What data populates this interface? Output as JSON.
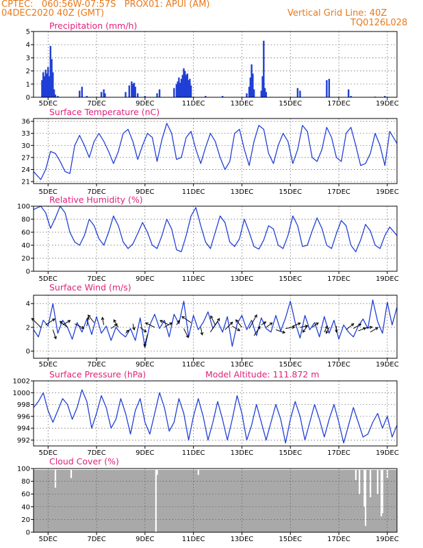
{
  "header": {
    "line1_left": "CPTEC:   060:56W-07:57S   PROX01: APUI (AM)",
    "line2_left": "04DEC2020 40Z (GMT)",
    "line1_right": "Vertical Grid Line: 40Z",
    "line2_right": "TQ0126L028"
  },
  "colors": {
    "series": "#1f3fd6",
    "title": "#e0207a",
    "header": "#e8791a",
    "cloud": "#a9a9a9"
  },
  "chart_data": [
    {
      "type": "bar",
      "title": "Precipitation (mm/h)",
      "ylim": [
        0,
        5
      ],
      "yticks": [
        "0",
        "1",
        "2",
        "3",
        "4",
        "5"
      ],
      "xlabels": [
        "5DEC",
        "7DEC",
        "9DEC",
        "11DEC",
        "13DEC",
        "15DEC",
        "17DEC",
        "19DEC"
      ],
      "x_days": [
        4.4,
        19.4
      ],
      "grid": true,
      "bars": [
        [
          4.75,
          1.3
        ],
        [
          4.8,
          1.9
        ],
        [
          4.85,
          1.6
        ],
        [
          4.9,
          2.1
        ],
        [
          4.95,
          1.8
        ],
        [
          5.0,
          2.3
        ],
        [
          5.05,
          1.6
        ],
        [
          5.1,
          3.9
        ],
        [
          5.15,
          2.9
        ],
        [
          5.2,
          1.9
        ],
        [
          5.25,
          0.6
        ],
        [
          5.3,
          0.2
        ],
        [
          5.4,
          0.1
        ],
        [
          6.3,
          0.5
        ],
        [
          6.4,
          0.8
        ],
        [
          6.6,
          0.1
        ],
        [
          7.2,
          0.4
        ],
        [
          7.3,
          0.6
        ],
        [
          7.35,
          0.3
        ],
        [
          8.2,
          0.4
        ],
        [
          8.35,
          0.9
        ],
        [
          8.45,
          1.2
        ],
        [
          8.5,
          1.0
        ],
        [
          8.55,
          1.1
        ],
        [
          8.6,
          0.8
        ],
        [
          8.7,
          0.3
        ],
        [
          9.0,
          0.1
        ],
        [
          9.5,
          0.3
        ],
        [
          9.6,
          0.6
        ],
        [
          10.2,
          0.7
        ],
        [
          10.3,
          1.0
        ],
        [
          10.35,
          1.2
        ],
        [
          10.4,
          1.5
        ],
        [
          10.45,
          1.1
        ],
        [
          10.5,
          1.4
        ],
        [
          10.55,
          1.7
        ],
        [
          10.6,
          2.2
        ],
        [
          10.65,
          2.0
        ],
        [
          10.7,
          1.7
        ],
        [
          10.75,
          1.8
        ],
        [
          10.8,
          1.3
        ],
        [
          10.85,
          1.4
        ],
        [
          10.9,
          0.9
        ],
        [
          11.5,
          0.1
        ],
        [
          12.2,
          0.1
        ],
        [
          13.2,
          0.3
        ],
        [
          13.3,
          0.8
        ],
        [
          13.35,
          1.5
        ],
        [
          13.4,
          2.5
        ],
        [
          13.45,
          1.8
        ],
        [
          13.5,
          0.6
        ],
        [
          13.8,
          0.5
        ],
        [
          13.85,
          1.6
        ],
        [
          13.9,
          4.3
        ],
        [
          13.95,
          0.7
        ],
        [
          14.0,
          0.4
        ],
        [
          15.3,
          0.7
        ],
        [
          15.4,
          0.5
        ],
        [
          16.5,
          1.3
        ],
        [
          16.6,
          1.4
        ],
        [
          17.4,
          0.6
        ],
        [
          17.5,
          0.1
        ],
        [
          18.5,
          0.05
        ],
        [
          18.9,
          0.1
        ]
      ]
    },
    {
      "type": "line",
      "title": "Surface Temperature (nC)",
      "ylim": [
        20.5,
        36.7
      ],
      "yticks": [
        "21",
        "24",
        "27",
        "30",
        "33",
        "36"
      ],
      "xlabels": [
        "5DEC",
        "7DEC",
        "9DEC",
        "11DEC",
        "13DEC",
        "15DEC",
        "17DEC",
        "19DEC"
      ],
      "grid": true,
      "x": [
        4.4,
        4.7,
        4.9,
        5.1,
        5.3,
        5.5,
        5.7,
        5.9,
        6.1,
        6.3,
        6.5,
        6.7,
        6.9,
        7.1,
        7.3,
        7.5,
        7.7,
        7.9,
        8.1,
        8.3,
        8.5,
        8.7,
        8.9,
        9.1,
        9.3,
        9.5,
        9.7,
        9.9,
        10.1,
        10.3,
        10.5,
        10.7,
        10.9,
        11.1,
        11.3,
        11.5,
        11.7,
        11.9,
        12.1,
        12.3,
        12.5,
        12.7,
        12.9,
        13.1,
        13.3,
        13.5,
        13.7,
        13.9,
        14.1,
        14.3,
        14.5,
        14.7,
        14.9,
        15.1,
        15.3,
        15.5,
        15.7,
        15.9,
        16.1,
        16.3,
        16.5,
        16.7,
        16.9,
        17.1,
        17.3,
        17.5,
        17.7,
        17.9,
        18.1,
        18.3,
        18.5,
        18.7,
        18.9,
        19.1,
        19.4
      ],
      "y": [
        23.5,
        21.5,
        24,
        28.5,
        28,
        26,
        23.5,
        23,
        30,
        32.5,
        30,
        27,
        31,
        33,
        31,
        28.5,
        25.5,
        28.5,
        33,
        34,
        31,
        26.5,
        30,
        33,
        32,
        26,
        31.5,
        35.5,
        33,
        26.5,
        27,
        32,
        33.5,
        29,
        25.5,
        29.5,
        33,
        31,
        27,
        24,
        26,
        33,
        34,
        29,
        25,
        31,
        35,
        34,
        28,
        25.5,
        30,
        33,
        31,
        25.5,
        29,
        35,
        33.5,
        27,
        26,
        29,
        34.5,
        32,
        27,
        26,
        33,
        34.5,
        30,
        25,
        25.5,
        28,
        33,
        30,
        25,
        33.5,
        30.5
      ]
    },
    {
      "type": "line",
      "title": "Relative Humidity (%)",
      "ylim": [
        0,
        100
      ],
      "yticks": [
        "0",
        "20",
        "40",
        "60",
        "80",
        "100"
      ],
      "xlabels": [
        "5DEC",
        "7DEC",
        "9DEC",
        "11DEC",
        "13DEC",
        "15DEC",
        "17DEC",
        "19DEC"
      ],
      "grid": true,
      "x": [
        4.4,
        4.7,
        4.9,
        5.1,
        5.3,
        5.5,
        5.7,
        5.9,
        6.1,
        6.3,
        6.5,
        6.7,
        6.9,
        7.1,
        7.3,
        7.5,
        7.7,
        7.9,
        8.1,
        8.3,
        8.5,
        8.7,
        8.9,
        9.1,
        9.3,
        9.5,
        9.7,
        9.9,
        10.1,
        10.3,
        10.5,
        10.7,
        10.9,
        11.1,
        11.3,
        11.5,
        11.7,
        11.9,
        12.1,
        12.3,
        12.5,
        12.7,
        12.9,
        13.1,
        13.3,
        13.5,
        13.7,
        13.9,
        14.1,
        14.3,
        14.5,
        14.7,
        14.9,
        15.1,
        15.3,
        15.5,
        15.7,
        15.9,
        16.1,
        16.3,
        16.5,
        16.7,
        16.9,
        17.1,
        17.3,
        17.5,
        17.7,
        17.9,
        18.1,
        18.3,
        18.5,
        18.7,
        18.9,
        19.1,
        19.4
      ],
      "y": [
        95,
        100,
        90,
        66,
        82,
        100,
        90,
        60,
        45,
        40,
        55,
        80,
        70,
        50,
        40,
        60,
        85,
        70,
        45,
        35,
        42,
        58,
        75,
        60,
        40,
        35,
        55,
        80,
        65,
        33,
        30,
        55,
        85,
        98,
        70,
        45,
        35,
        60,
        85,
        75,
        45,
        38,
        50,
        80,
        60,
        38,
        34,
        48,
        70,
        65,
        40,
        35,
        55,
        85,
        70,
        38,
        40,
        62,
        82,
        66,
        40,
        35,
        58,
        78,
        70,
        40,
        30,
        48,
        72,
        62,
        40,
        35,
        55,
        68,
        55
      ]
    },
    {
      "type": "line",
      "title": "Surface Wind (m/s)",
      "ylim": [
        -0.6,
        4.7
      ],
      "yticks": [
        "0",
        "2",
        "4"
      ],
      "xlabels": [
        "5DEC",
        "7DEC",
        "9DEC",
        "11DEC",
        "13DEC",
        "15DEC",
        "17DEC",
        "19DEC"
      ],
      "grid": true,
      "x": [
        4.4,
        4.6,
        4.8,
        5.0,
        5.2,
        5.4,
        5.6,
        5.8,
        6.0,
        6.2,
        6.4,
        6.6,
        6.8,
        7.0,
        7.2,
        7.4,
        7.6,
        7.8,
        8.0,
        8.2,
        8.4,
        8.6,
        8.8,
        9.0,
        9.2,
        9.4,
        9.6,
        9.8,
        10.0,
        10.2,
        10.4,
        10.6,
        10.8,
        11.0,
        11.2,
        11.4,
        11.6,
        11.8,
        12.0,
        12.2,
        12.4,
        12.6,
        12.8,
        13.0,
        13.2,
        13.4,
        13.6,
        13.8,
        14.0,
        14.2,
        14.4,
        14.6,
        14.8,
        15.0,
        15.2,
        15.4,
        15.6,
        15.8,
        16.0,
        16.2,
        16.4,
        16.6,
        16.8,
        17.0,
        17.2,
        17.4,
        17.6,
        17.8,
        18.0,
        18.2,
        18.4,
        18.6,
        18.8,
        19.0,
        19.2,
        19.4
      ],
      "y": [
        1.8,
        1.2,
        2.6,
        2.1,
        4.0,
        1.5,
        2.6,
        2.0,
        1.0,
        2.4,
        1.6,
        2.7,
        1.4,
        2.9,
        1.5,
        2.1,
        0.9,
        2.0,
        1.5,
        1.2,
        1.9,
        0.9,
        2.8,
        0.3,
        2.2,
        3.1,
        1.9,
        2.6,
        1.2,
        3.1,
        2.3,
        4.2,
        1.2,
        3.0,
        1.8,
        2.4,
        3.3,
        1.9,
        2.5,
        1.6,
        2.9,
        0.4,
        2.3,
        3.0,
        1.8,
        2.6,
        1.3,
        2.8,
        1.9,
        1.6,
        3.0,
        1.7,
        2.8,
        4.2,
        2.4,
        1.1,
        3.0,
        1.8,
        2.4,
        1.2,
        2.9,
        1.5,
        2.6,
        1.0,
        2.2,
        1.6,
        1.2,
        2.1,
        2.7,
        1.9,
        4.3,
        2.5,
        1.5,
        4.1,
        2.2,
        3.7
      ],
      "arrows": [
        [
          4.7,
          2.0,
          -0.6,
          0.6
        ],
        [
          4.9,
          2.2,
          0.6,
          0.4
        ],
        [
          5.2,
          1.8,
          0.2,
          -0.6
        ],
        [
          5.6,
          2.2,
          0.5,
          0.3
        ],
        [
          5.8,
          2.0,
          -0.5,
          0.4
        ],
        [
          6.1,
          2.3,
          0.6,
          -0.3
        ],
        [
          6.6,
          2.1,
          0.1,
          0.6
        ],
        [
          6.9,
          2.4,
          -0.4,
          0.5
        ],
        [
          7.3,
          2.2,
          -0.1,
          0.5
        ],
        [
          7.6,
          1.9,
          0.4,
          0.3
        ],
        [
          7.9,
          2.0,
          -0.3,
          0.5
        ],
        [
          8.2,
          1.5,
          0.2,
          0.2
        ],
        [
          8.5,
          2.3,
          0.1,
          -0.4
        ],
        [
          8.8,
          2.0,
          0.4,
          -0.3
        ],
        [
          9.1,
          1.4,
          -0.2,
          -0.8
        ],
        [
          9.4,
          2.0,
          -0.6,
          0.3
        ],
        [
          9.8,
          2.0,
          0.5,
          0.3
        ],
        [
          10.0,
          2.2,
          -0.6,
          0.3
        ],
        [
          10.3,
          2.2,
          0.2,
          0.3
        ],
        [
          10.6,
          1.9,
          0.3,
          -0.6
        ],
        [
          10.9,
          2.4,
          -0.6,
          0.4
        ],
        [
          11.3,
          2.0,
          0.1,
          -0.5
        ],
        [
          11.7,
          1.6,
          0.6,
          0.9
        ],
        [
          11.9,
          2.2,
          -0.3,
          0.6
        ],
        [
          12.3,
          1.8,
          0.5,
          0.5
        ],
        [
          12.6,
          2.1,
          0.5,
          -0.3
        ],
        [
          13.0,
          2.0,
          -0.4,
          0.5
        ],
        [
          13.3,
          1.9,
          0.5,
          0.9
        ],
        [
          13.5,
          1.3,
          0.4,
          0.6
        ],
        [
          13.8,
          2.2,
          0.3,
          0.2
        ],
        [
          14.0,
          2.0,
          0.4,
          0.3
        ],
        [
          14.4,
          1.8,
          0.6,
          -0.2
        ],
        [
          14.8,
          1.9,
          0.6,
          0.1
        ],
        [
          15.1,
          2.1,
          0.5,
          0.2
        ],
        [
          15.4,
          2.0,
          0.5,
          0.1
        ],
        [
          15.7,
          2.1,
          -0.3,
          -0.4
        ],
        [
          15.9,
          2.0,
          0.4,
          0.3
        ],
        [
          16.4,
          1.6,
          0.2,
          0.4
        ],
        [
          16.6,
          2.0,
          -0.2,
          -0.4
        ],
        [
          16.9,
          2.1,
          0.0,
          -0.4
        ],
        [
          17.3,
          1.8,
          0.5,
          0.4
        ],
        [
          17.6,
          1.9,
          0.5,
          0.3
        ],
        [
          17.8,
          1.7,
          0.5,
          0.2
        ],
        [
          18.0,
          1.9,
          0.6,
          0.1
        ],
        [
          18.3,
          1.6,
          0.5,
          0.3
        ]
      ]
    },
    {
      "type": "line",
      "title": "Surface Pressure (hPa)",
      "annotation": "Model Altitude: 111.872 m",
      "ylim": [
        991,
        1002
      ],
      "yticks": [
        "992",
        "994",
        "996",
        "998",
        "1000",
        "1002"
      ],
      "xlabels": [
        "5DEC",
        "7DEC",
        "9DEC",
        "11DEC",
        "13DEC",
        "15DEC",
        "17DEC",
        "19DEC"
      ],
      "grid": true,
      "x": [
        4.4,
        4.6,
        4.8,
        5.0,
        5.2,
        5.4,
        5.6,
        5.8,
        6.0,
        6.2,
        6.4,
        6.6,
        6.8,
        7.0,
        7.2,
        7.4,
        7.6,
        7.8,
        8.0,
        8.2,
        8.4,
        8.6,
        8.8,
        9.0,
        9.2,
        9.4,
        9.6,
        9.8,
        10.0,
        10.2,
        10.4,
        10.6,
        10.8,
        11.0,
        11.2,
        11.4,
        11.6,
        11.8,
        12.0,
        12.2,
        12.4,
        12.6,
        12.8,
        13.0,
        13.2,
        13.4,
        13.6,
        13.8,
        14.0,
        14.2,
        14.4,
        14.6,
        14.8,
        15.0,
        15.2,
        15.4,
        15.6,
        15.8,
        16.0,
        16.2,
        16.4,
        16.6,
        16.8,
        17.0,
        17.2,
        17.4,
        17.6,
        17.8,
        18.0,
        18.2,
        18.4,
        18.6,
        18.8,
        19.0,
        19.2,
        19.4
      ],
      "y": [
        997.5,
        998.5,
        1000.0,
        997.0,
        995.0,
        997.0,
        999.0,
        998.0,
        995.5,
        997.5,
        1000.5,
        998.5,
        994.0,
        996.5,
        999.5,
        997.5,
        994.0,
        995.5,
        999.0,
        996.5,
        993.0,
        997.0,
        999.0,
        995.0,
        993.0,
        996.5,
        1000.0,
        997.5,
        993.5,
        995.0,
        999.0,
        996.5,
        992.0,
        996.0,
        999.0,
        996.0,
        992.0,
        995.0,
        998.5,
        995.5,
        992.0,
        995.5,
        999.5,
        996.5,
        992.0,
        994.5,
        998.0,
        995.0,
        992.0,
        995.0,
        998.0,
        995.5,
        991.5,
        995.5,
        998.5,
        996.0,
        992.0,
        995.0,
        998.0,
        995.5,
        992.5,
        995.5,
        998.0,
        995.0,
        991.5,
        994.5,
        997.5,
        995.0,
        992.5,
        993.0,
        995.0,
        996.5,
        994.0,
        996.0,
        992.5,
        994.5
      ]
    },
    {
      "type": "bar",
      "title": "Cloud Cover (%)",
      "ylim": [
        0,
        100
      ],
      "yticks": [
        "0",
        "20",
        "40",
        "60",
        "80",
        "100"
      ],
      "xlabels": [
        "5DEC",
        "7DEC",
        "9DEC",
        "11DEC",
        "13DEC",
        "15DEC",
        "17DEC",
        "19DEC"
      ],
      "grid": true,
      "dips": [
        [
          5.3,
          70
        ],
        [
          5.95,
          85
        ],
        [
          9.45,
          0
        ],
        [
          9.5,
          90
        ],
        [
          11.2,
          90
        ],
        [
          17.7,
          82
        ],
        [
          17.85,
          60
        ],
        [
          18.05,
          40
        ],
        [
          18.1,
          10
        ],
        [
          18.3,
          55
        ],
        [
          18.6,
          60
        ],
        [
          18.75,
          25
        ],
        [
          18.8,
          30
        ],
        [
          19.0,
          85
        ]
      ]
    }
  ]
}
